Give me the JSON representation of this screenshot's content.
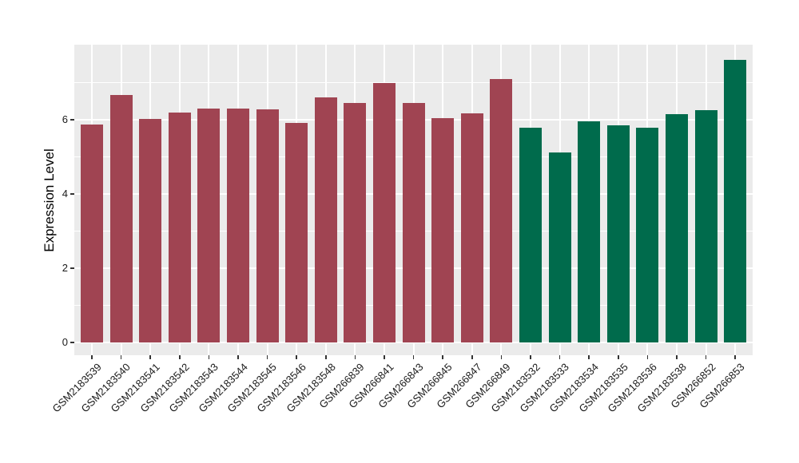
{
  "chart_data": {
    "type": "bar",
    "title": "",
    "ylabel": "Expression Level",
    "xlabel": "",
    "categories": [
      "GSM2183539",
      "GSM2183540",
      "GSM2183541",
      "GSM2183542",
      "GSM2183543",
      "GSM2183544",
      "GSM2183545",
      "GSM2183546",
      "GSM2183548",
      "GSM266839",
      "GSM266841",
      "GSM266843",
      "GSM266845",
      "GSM266847",
      "GSM266849",
      "GSM2183532",
      "GSM2183533",
      "GSM2183534",
      "GSM2183535",
      "GSM2183536",
      "GSM2183538",
      "GSM266852",
      "GSM266853"
    ],
    "values": [
      5.87,
      6.67,
      6.02,
      6.19,
      6.31,
      6.31,
      6.27,
      5.91,
      6.6,
      6.45,
      6.99,
      6.45,
      6.04,
      6.18,
      7.1,
      5.79,
      5.12,
      5.96,
      5.86,
      5.79,
      6.14,
      6.25,
      7.62
    ],
    "group_of": [
      "group1",
      "group1",
      "group1",
      "group1",
      "group1",
      "group1",
      "group1",
      "group1",
      "group1",
      "group1",
      "group1",
      "group1",
      "group1",
      "group1",
      "group1",
      "group2",
      "group2",
      "group2",
      "group2",
      "group2",
      "group2",
      "group2",
      "group2"
    ],
    "group_colors": {
      "group1": "#A04452",
      "group2": "#006B4C"
    },
    "yticks": [
      0,
      2,
      4,
      6
    ],
    "yticks_minor": [
      1,
      3,
      5,
      7
    ],
    "ylim": [
      0,
      8.02
    ],
    "grid": "on",
    "legend": "none",
    "panel_bg": "#EBEBEB",
    "grid_color": "#FFFFFF",
    "tick_color": "#333333",
    "text_color": "#1A1A1A"
  }
}
